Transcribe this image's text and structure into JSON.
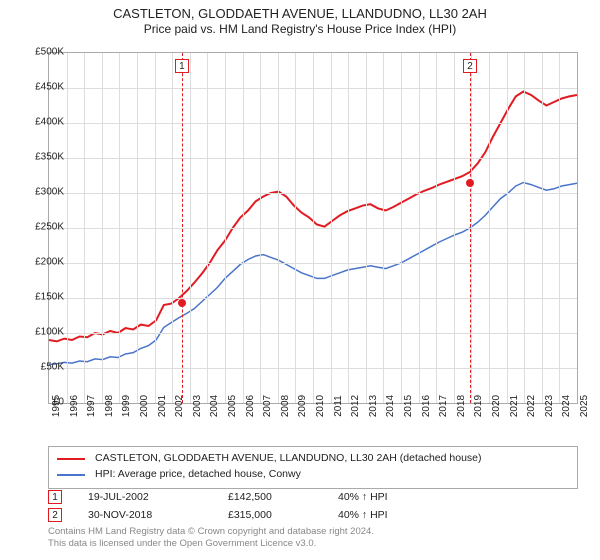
{
  "title": {
    "line1": "CASTLETON, GLODDAETH AVENUE, LLANDUDNO, LL30 2AH",
    "line2": "Price paid vs. HM Land Registry's House Price Index (HPI)"
  },
  "chart": {
    "type": "line",
    "x_start_year": 1995,
    "x_end_year": 2025,
    "ylim": [
      0,
      500000
    ],
    "ytick_step": 50000,
    "ytick_labels": [
      "£0",
      "£50K",
      "£100K",
      "£150K",
      "£200K",
      "£250K",
      "£300K",
      "£350K",
      "£400K",
      "£450K",
      "£500K"
    ],
    "grid_color": "#dddddd",
    "border_color": "#aaaaaa",
    "background_color": "#ffffff",
    "series": [
      {
        "name": "subject",
        "color": "#e11b22",
        "width": 2,
        "values": [
          90,
          88,
          92,
          90,
          95,
          94,
          100,
          98,
          103,
          100,
          107,
          105,
          112,
          110,
          118,
          140,
          142,
          150,
          160,
          172,
          185,
          200,
          218,
          232,
          250,
          265,
          275,
          288,
          295,
          300,
          302,
          295,
          282,
          272,
          265,
          255,
          252,
          260,
          268,
          274,
          278,
          282,
          284,
          278,
          275,
          280,
          286,
          292,
          298,
          303,
          307,
          312,
          316,
          320,
          324,
          330,
          342,
          358,
          380,
          400,
          420,
          438,
          445,
          440,
          432,
          425,
          430,
          435,
          438,
          440
        ]
      },
      {
        "name": "hpi",
        "color": "#4a74c9",
        "width": 1.5,
        "values": [
          55,
          56,
          58,
          57,
          60,
          59,
          63,
          62,
          66,
          65,
          70,
          72,
          78,
          82,
          90,
          108,
          115,
          122,
          128,
          135,
          145,
          155,
          165,
          178,
          188,
          198,
          205,
          210,
          212,
          208,
          204,
          198,
          192,
          186,
          182,
          178,
          178,
          182,
          186,
          190,
          192,
          194,
          196,
          194,
          192,
          196,
          200,
          206,
          212,
          218,
          224,
          230,
          235,
          240,
          244,
          250,
          258,
          268,
          280,
          292,
          300,
          310,
          315,
          312,
          308,
          304,
          306,
          310,
          312,
          314
        ]
      }
    ],
    "vlines": [
      {
        "year_frac": 2002.55,
        "color": "#e11b22",
        "badge": "1",
        "dot_value": 142.5
      },
      {
        "year_frac": 2018.92,
        "color": "#e11b22",
        "badge": "2",
        "dot_value": 315
      }
    ]
  },
  "legend": {
    "items": [
      {
        "color": "#e11b22",
        "label": "CASTLETON, GLODDAETH AVENUE, LLANDUDNO, LL30 2AH (detached house)"
      },
      {
        "color": "#4a74c9",
        "label": "HPI: Average price, detached house, Conwy"
      }
    ]
  },
  "sales": [
    {
      "badge": "1",
      "color": "#e11b22",
      "date": "19-JUL-2002",
      "price": "£142,500",
      "pct": "40% ↑ HPI"
    },
    {
      "badge": "2",
      "color": "#e11b22",
      "date": "30-NOV-2018",
      "price": "£315,000",
      "pct": "40% ↑ HPI"
    }
  ],
  "attribution": {
    "line1": "Contains HM Land Registry data © Crown copyright and database right 2024.",
    "line2": "This data is licensed under the Open Government Licence v3.0."
  }
}
